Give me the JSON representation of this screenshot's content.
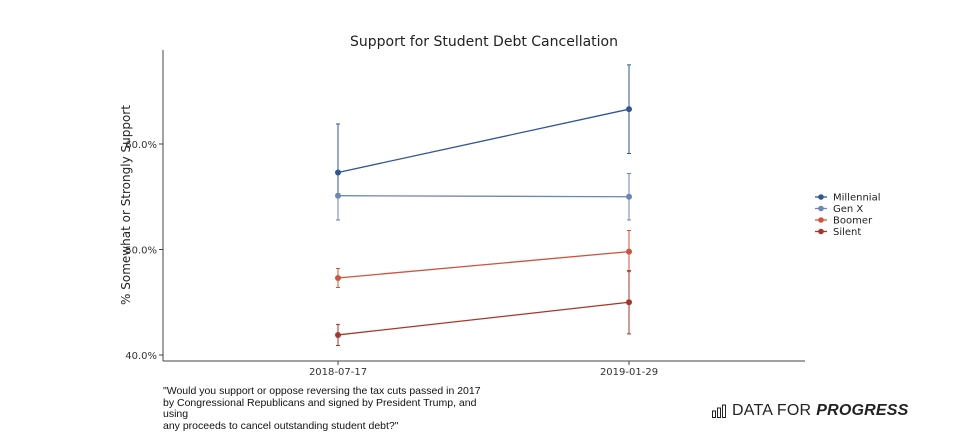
{
  "chart_data": {
    "type": "line",
    "title": "Support for Student Debt Cancellation",
    "ylabel": "% Somewhat or Strongly Support",
    "xlabel": "",
    "categories": [
      "2018-07-17",
      "2019-01-29"
    ],
    "ylim": [
      0.4,
      0.685
    ],
    "yticks": [
      0.4,
      0.5,
      0.6
    ],
    "ytick_labels": [
      "40.0%",
      "50.0%",
      "60.0%"
    ],
    "grid": false,
    "legend_position": "right",
    "series": [
      {
        "name": "Millennial",
        "color": "#2f5597",
        "values": [
          0.573,
          0.633
        ],
        "err_low": [
          0.528,
          0.591
        ],
        "err_high": [
          0.619,
          0.675
        ]
      },
      {
        "name": "Gen X",
        "color": "#6d86b5",
        "values": [
          0.551,
          0.55
        ],
        "err_low": [
          0.528,
          0.528
        ],
        "err_high": [
          0.553,
          0.572
        ]
      },
      {
        "name": "Boomer",
        "color": "#d0533c",
        "values": [
          0.473,
          0.498
        ],
        "err_low": [
          0.464,
          0.479
        ],
        "err_high": [
          0.482,
          0.518
        ]
      },
      {
        "name": "Silent",
        "color": "#a8352b",
        "values": [
          0.419,
          0.45
        ],
        "err_low": [
          0.409,
          0.42
        ],
        "err_high": [
          0.429,
          0.48
        ]
      }
    ]
  },
  "footnote": "\"Would you support or oppose reversing the tax cuts passed in 2017\n by Congressional Republicans and signed by President Trump, and using\nany proceeds to cancel outstanding student debt?\"",
  "brand": {
    "light": "DATA FOR",
    "strong": "PROGRESS"
  }
}
